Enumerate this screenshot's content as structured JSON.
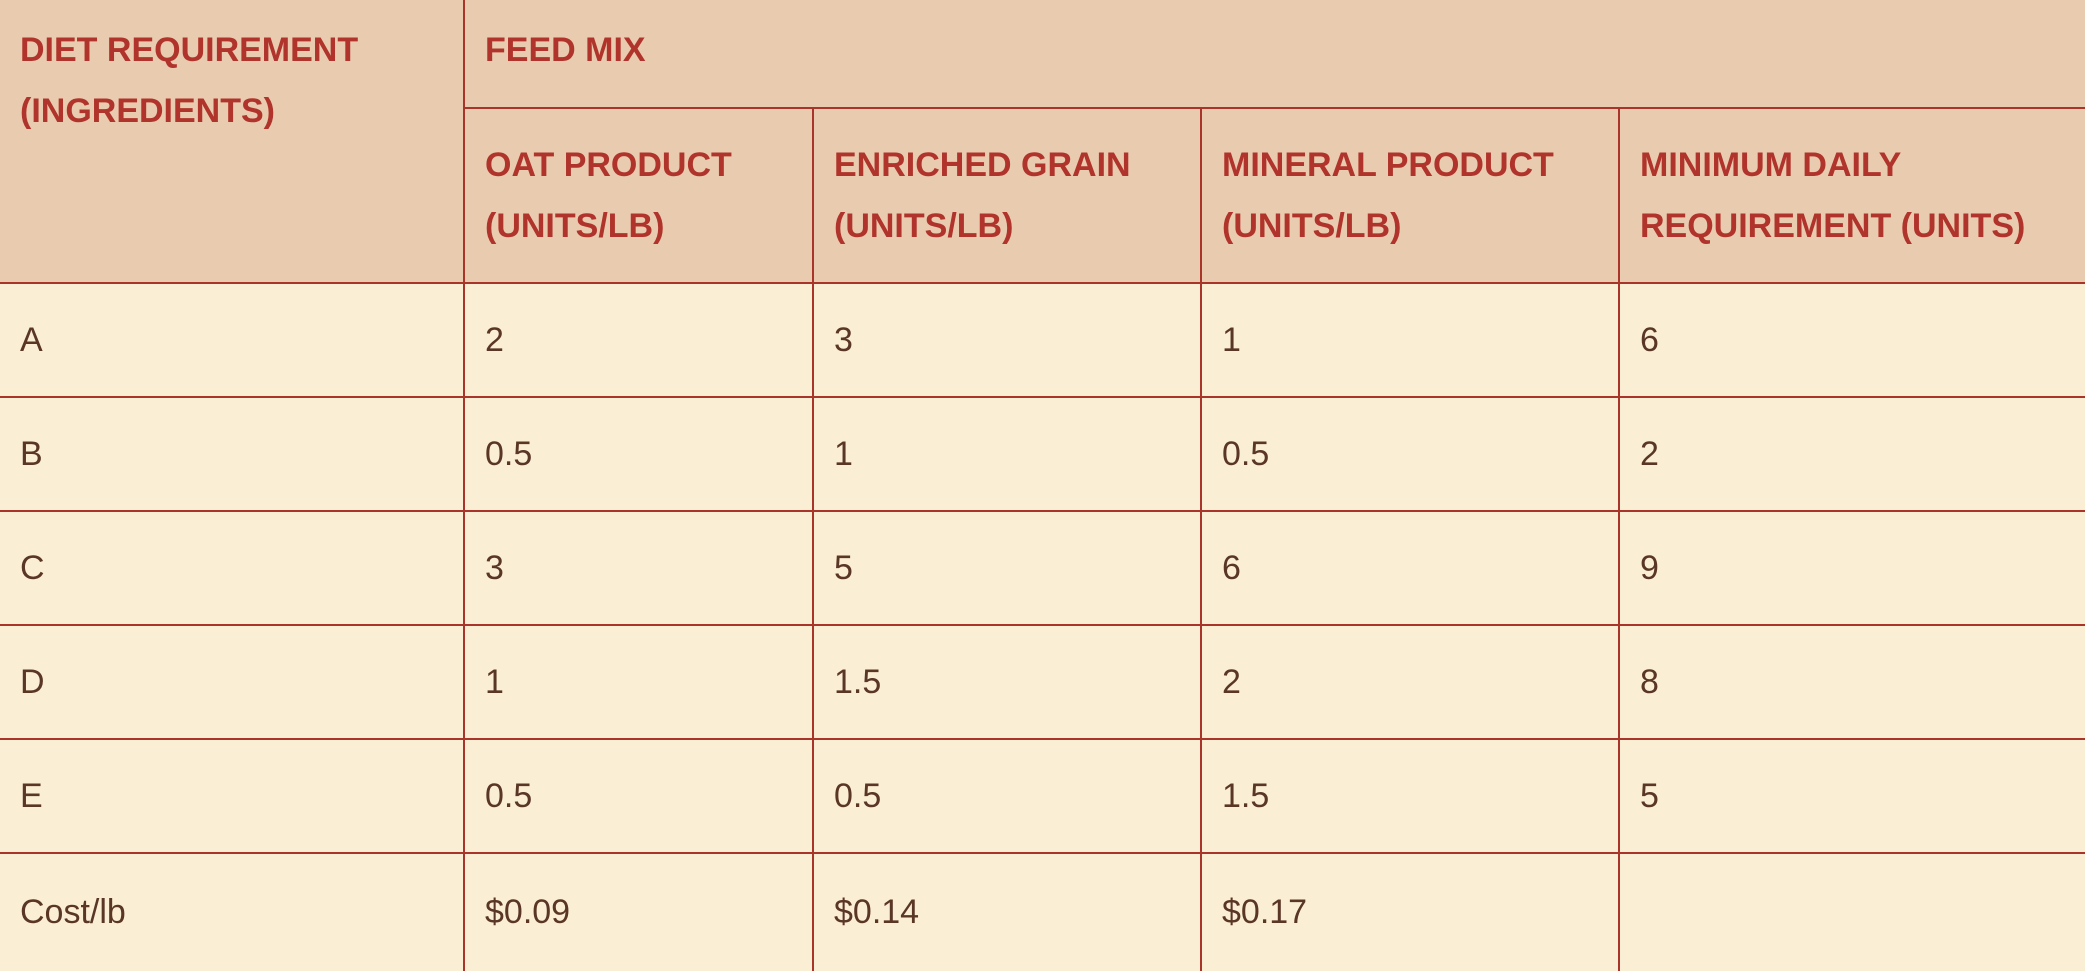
{
  "table": {
    "corner_header": "DIET REQUIREMENT (INGREDIENTS)",
    "corner_line1": "DIET REQUIREMENT",
    "corner_line2": "(INGREDIENTS)",
    "group_header": "FEED MIX",
    "columns": [
      {
        "line1": "OAT PRODUCT",
        "line2": "(UNITS/LB)"
      },
      {
        "line1": "ENRICHED GRAIN",
        "line2": "(UNITS/LB)"
      },
      {
        "line1": "MINERAL PRODUCT",
        "line2": "(UNITS/LB)"
      },
      {
        "line1": "MINIMUM DAILY",
        "line2": "REQUIREMENT (UNITS)"
      }
    ],
    "rows": [
      {
        "label": "A",
        "values": [
          "2",
          "3",
          "1",
          "6"
        ]
      },
      {
        "label": "B",
        "values": [
          "0.5",
          "1",
          "0.5",
          "2"
        ]
      },
      {
        "label": "C",
        "values": [
          "3",
          "5",
          "6",
          "9"
        ]
      },
      {
        "label": "D",
        "values": [
          "1",
          "1.5",
          "2",
          "8"
        ]
      },
      {
        "label": "E",
        "values": [
          "0.5",
          "0.5",
          "1.5",
          "5"
        ]
      },
      {
        "label": "Cost/lb",
        "values": [
          "$0.09",
          "$0.14",
          "$0.17",
          ""
        ]
      }
    ]
  },
  "colors": {
    "header_background": "#e9cbb0",
    "header_text": "#b0342b",
    "body_background": "#faeed5",
    "body_text": "#5a3626",
    "border": "#a8342a"
  }
}
